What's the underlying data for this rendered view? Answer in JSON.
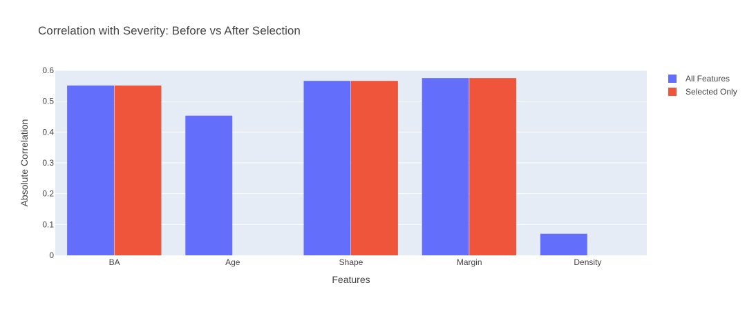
{
  "chart_data": {
    "type": "bar",
    "title": "Correlation with Severity: Before vs After Selection",
    "xlabel": "Features",
    "ylabel": "Absolute Correlation",
    "categories": [
      "BA",
      "Age",
      "Shape",
      "Margin",
      "Density"
    ],
    "series": [
      {
        "name": "All Features",
        "values": [
          0.551,
          0.453,
          0.566,
          0.575,
          0.07
        ],
        "color": "#636efa"
      },
      {
        "name": "Selected Only",
        "values": [
          0.551,
          null,
          0.566,
          0.575,
          null
        ],
        "color": "#ef553b"
      }
    ],
    "ylim": [
      0,
      0.6
    ],
    "yticks": [
      0,
      0.1,
      0.2,
      0.3,
      0.4,
      0.5,
      0.6
    ],
    "ytick_labels": [
      "0",
      "0.1",
      "0.2",
      "0.3",
      "0.4",
      "0.5",
      "0.6"
    ],
    "grid": true,
    "legend_position": "top-right",
    "plot_background": "#e5ecf6"
  }
}
